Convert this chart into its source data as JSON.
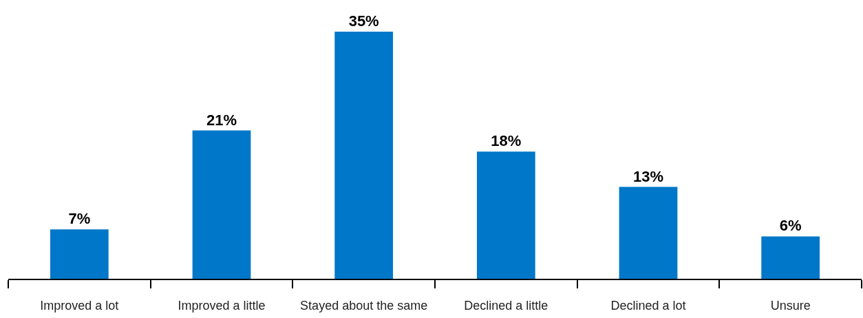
{
  "chart_data": {
    "type": "bar",
    "categories": [
      "Improved a lot",
      "Improved a little",
      "Stayed about the same",
      "Declined a little",
      "Declined a lot",
      "Unsure"
    ],
    "values": [
      7,
      21,
      35,
      18,
      13,
      6
    ],
    "value_labels": [
      "7%",
      "21%",
      "35%",
      "18%",
      "13%",
      "6%"
    ],
    "color": "#0077c8"
  }
}
